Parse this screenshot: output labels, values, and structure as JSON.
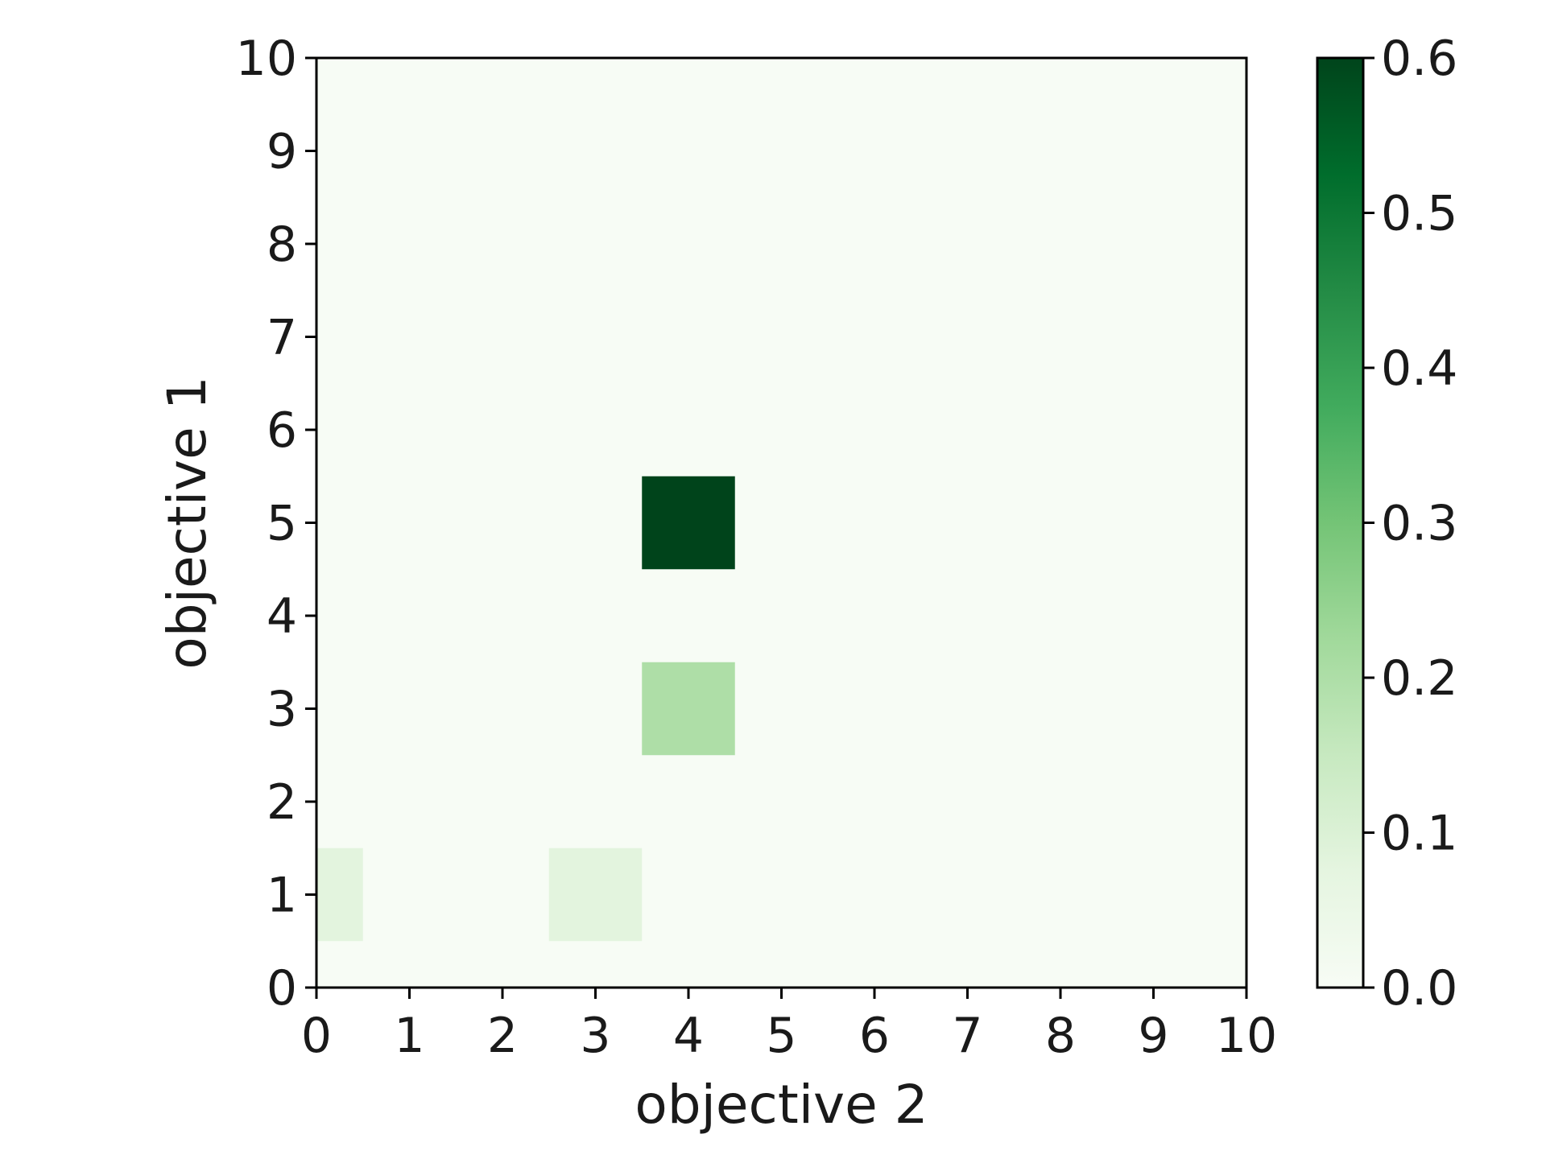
{
  "chart_data": {
    "type": "heatmap",
    "xlabel": "objective 2",
    "ylabel": "objective 1",
    "xlim": [
      0,
      10
    ],
    "ylim": [
      0,
      10
    ],
    "xticks": [
      "0",
      "1",
      "2",
      "3",
      "4",
      "5",
      "6",
      "7",
      "8",
      "9",
      "10"
    ],
    "yticks": [
      "0",
      "1",
      "2",
      "3",
      "4",
      "5",
      "6",
      "7",
      "8",
      "9",
      "10"
    ],
    "grid": false,
    "colormap": "Greens",
    "color_range": [
      0.0,
      0.6
    ],
    "colorbar_ticks": [
      "0.0",
      "0.1",
      "0.2",
      "0.3",
      "0.4",
      "0.5",
      "0.6"
    ],
    "background_value": 0.0,
    "cells": [
      {
        "x": 0,
        "y": 1,
        "value": 0.08
      },
      {
        "x": 3,
        "y": 1,
        "value": 0.08
      },
      {
        "x": 4,
        "y": 3,
        "value": 0.2
      },
      {
        "x": 4,
        "y": 5,
        "value": 0.6
      }
    ]
  }
}
